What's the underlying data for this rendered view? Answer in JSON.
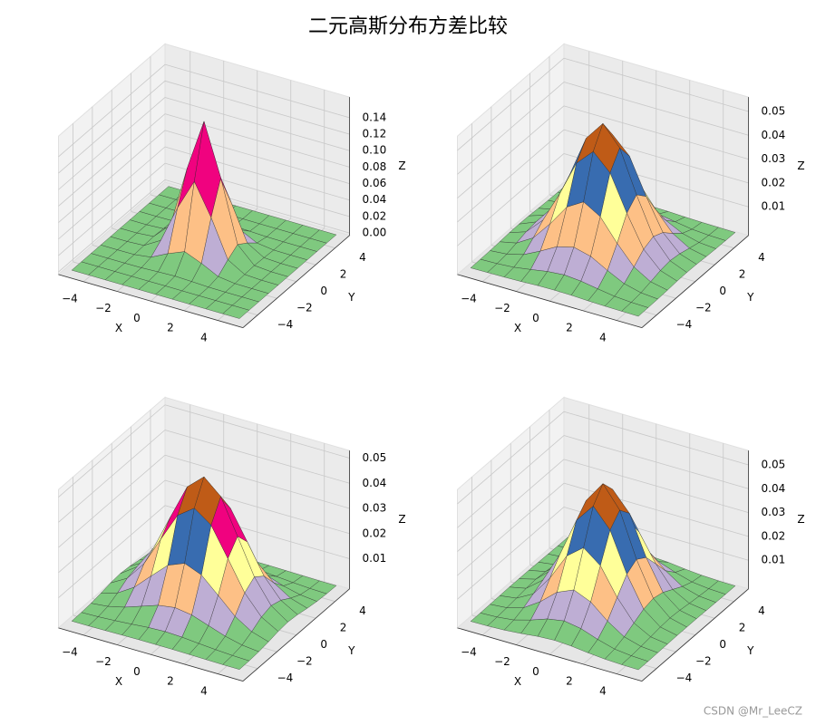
{
  "title": "二元高斯分布方差比较",
  "watermark": "CSDN @Mr_LeeCZ",
  "chart_data": [
    {
      "type": "surface",
      "xlabel": "X",
      "ylabel": "Y",
      "zlabel": "Z",
      "x": [
        -5,
        -4,
        -3,
        -2,
        -1,
        0,
        1,
        2,
        3,
        4,
        5
      ],
      "y": [
        -5,
        -4,
        -3,
        -2,
        -1,
        0,
        1,
        2,
        3,
        4,
        5
      ],
      "xlim": [
        -5.5,
        5.5
      ],
      "ylim": [
        -5.5,
        5.5
      ],
      "zlim": [
        -0.003,
        0.165
      ],
      "xticks": [
        {
          "value": -4,
          "label": "−4"
        },
        {
          "value": -2,
          "label": "−2"
        },
        0,
        2,
        4
      ],
      "yticks": [
        {
          "value": -4,
          "label": "−4"
        },
        {
          "value": -2,
          "label": "−2"
        },
        0,
        2,
        4
      ],
      "zticks": [
        {
          "value": 0,
          "label": "0.00"
        },
        0.02,
        0.04,
        0.06,
        0.08,
        {
          "value": 0.1,
          "label": "0.10"
        },
        0.12,
        0.14
      ],
      "grid": true,
      "colormap": [
        "#7fc97f",
        "#beaed4",
        "#fdc086",
        "#ffff99",
        "#386cb0",
        "#f0027f",
        "#bf5b17",
        "#666666"
      ],
      "z": [
        [
          0,
          0,
          0,
          0,
          0,
          0,
          0,
          0,
          0,
          0,
          0
        ],
        [
          0,
          0,
          0,
          0,
          0,
          0.0001,
          0,
          0,
          0,
          0,
          0
        ],
        [
          0,
          0,
          0,
          0.0002,
          0.0011,
          0.0018,
          0.0011,
          0.0002,
          0,
          0,
          0
        ],
        [
          0,
          0,
          0.0002,
          0.0029,
          0.0131,
          0.0215,
          0.0131,
          0.0029,
          0.0002,
          0,
          0
        ],
        [
          0,
          0,
          0.0011,
          0.0131,
          0.0586,
          0.0966,
          0.0586,
          0.0131,
          0.0011,
          0,
          0
        ],
        [
          0,
          0.0001,
          0.0018,
          0.0215,
          0.0966,
          0.1592,
          0.0966,
          0.0215,
          0.0018,
          0.0001,
          0
        ],
        [
          0,
          0,
          0.0011,
          0.0131,
          0.0586,
          0.0966,
          0.0586,
          0.0131,
          0.0011,
          0,
          0
        ],
        [
          0,
          0,
          0.0002,
          0.0029,
          0.0131,
          0.0215,
          0.0131,
          0.0029,
          0.0002,
          0,
          0
        ],
        [
          0,
          0,
          0,
          0.0002,
          0.0011,
          0.0018,
          0.0011,
          0.0002,
          0,
          0,
          0
        ],
        [
          0,
          0,
          0,
          0,
          0,
          0.0001,
          0,
          0,
          0,
          0,
          0
        ],
        [
          0,
          0,
          0,
          0,
          0,
          0,
          0,
          0,
          0,
          0,
          0
        ]
      ]
    },
    {
      "type": "surface",
      "xlabel": "X",
      "ylabel": "Y",
      "zlabel": "Z",
      "x": [
        -5,
        -4,
        -3,
        -2,
        -1,
        0,
        1,
        2,
        3,
        4,
        5
      ],
      "y": [
        -5,
        -4,
        -3,
        -2,
        -1,
        0,
        1,
        2,
        3,
        4,
        5
      ],
      "xlim": [
        -5.5,
        5.5
      ],
      "ylim": [
        -5.5,
        5.5
      ],
      "zlim": [
        -0.002,
        0.056
      ],
      "xticks": [
        {
          "value": -4,
          "label": "−4"
        },
        {
          "value": -2,
          "label": "−2"
        },
        0,
        2,
        4
      ],
      "yticks": [
        {
          "value": -4,
          "label": "−4"
        },
        {
          "value": -2,
          "label": "−2"
        },
        0,
        2,
        4
      ],
      "zticks": [
        0.01,
        0.02,
        0.03,
        0.04,
        0.05
      ],
      "grid": true,
      "colormap": [
        "#7fc97f",
        "#beaed4",
        "#fdc086",
        "#ffff99",
        "#386cb0",
        "#f0027f",
        "#bf5b17",
        "#666666"
      ],
      "z": [
        [
          0,
          0.0001,
          0.0002,
          0.0004,
          0.0007,
          0.0008,
          0.0007,
          0.0004,
          0.0002,
          0.0001,
          0
        ],
        [
          0.0001,
          0.0003,
          0.0008,
          0.0019,
          0.0031,
          0.0037,
          0.0031,
          0.0019,
          0.0008,
          0.0003,
          0.0001
        ],
        [
          0.0002,
          0.0008,
          0.0026,
          0.0061,
          0.01,
          0.0118,
          0.01,
          0.0061,
          0.0026,
          0.0008,
          0.0002
        ],
        [
          0.0004,
          0.0019,
          0.0061,
          0.014,
          0.0231,
          0.0273,
          0.0231,
          0.014,
          0.0061,
          0.0019,
          0.0004
        ],
        [
          0.0007,
          0.0031,
          0.01,
          0.0231,
          0.038,
          0.0449,
          0.038,
          0.0231,
          0.01,
          0.0031,
          0.0007
        ],
        [
          0.0008,
          0.0037,
          0.0118,
          0.0273,
          0.0449,
          0.0531,
          0.0449,
          0.0273,
          0.0118,
          0.0037,
          0.0008
        ],
        [
          0.0007,
          0.0031,
          0.01,
          0.0231,
          0.038,
          0.0449,
          0.038,
          0.0231,
          0.01,
          0.0031,
          0.0007
        ],
        [
          0.0004,
          0.0019,
          0.0061,
          0.014,
          0.0231,
          0.0273,
          0.0231,
          0.014,
          0.0061,
          0.0019,
          0.0004
        ],
        [
          0.0002,
          0.0008,
          0.0026,
          0.0061,
          0.01,
          0.0118,
          0.01,
          0.0061,
          0.0026,
          0.0008,
          0.0002
        ],
        [
          0.0001,
          0.0003,
          0.0008,
          0.0019,
          0.0031,
          0.0037,
          0.0031,
          0.0019,
          0.0008,
          0.0003,
          0.0001
        ],
        [
          0,
          0.0001,
          0.0002,
          0.0004,
          0.0007,
          0.0008,
          0.0007,
          0.0004,
          0.0002,
          0.0001,
          0
        ]
      ]
    },
    {
      "type": "surface",
      "xlabel": "X",
      "ylabel": "Y",
      "zlabel": "Z",
      "x": [
        -5,
        -4,
        -3,
        -2,
        -1,
        0,
        1,
        2,
        3,
        4,
        5
      ],
      "y": [
        -5,
        -4,
        -3,
        -2,
        -1,
        0,
        1,
        2,
        3,
        4,
        5
      ],
      "xlim": [
        -5.5,
        5.5
      ],
      "ylim": [
        -5.5,
        5.5
      ],
      "zlim": [
        -0.002,
        0.053
      ],
      "xticks": [
        {
          "value": -4,
          "label": "−4"
        },
        {
          "value": -2,
          "label": "−2"
        },
        0,
        2,
        4
      ],
      "yticks": [
        {
          "value": -4,
          "label": "−4"
        },
        {
          "value": -2,
          "label": "−2"
        },
        0,
        2,
        4
      ],
      "zticks": [
        0.01,
        0.02,
        0.03,
        0.04,
        0.05
      ],
      "grid": true,
      "colormap": [
        "#7fc97f",
        "#beaed4",
        "#fdc086",
        "#ffff99",
        "#386cb0",
        "#f0027f",
        "#bf5b17",
        "#666666"
      ],
      "z": [
        [
          0,
          0,
          0.0001,
          0.0002,
          0.0003,
          0.0003,
          0.0003,
          0.0002,
          0.0001,
          0,
          0
        ],
        [
          0.0001,
          0.0003,
          0.0007,
          0.0012,
          0.0018,
          0.0021,
          0.0018,
          0.0012,
          0.0007,
          0.0003,
          0.0001
        ],
        [
          0.0004,
          0.0011,
          0.0027,
          0.005,
          0.0073,
          0.0083,
          0.0073,
          0.005,
          0.0027,
          0.0011,
          0.0004
        ],
        [
          0.001,
          0.0031,
          0.0073,
          0.0137,
          0.0199,
          0.0226,
          0.0199,
          0.0137,
          0.0073,
          0.0031,
          0.001
        ],
        [
          0.0018,
          0.0056,
          0.0133,
          0.025,
          0.0364,
          0.0412,
          0.0364,
          0.025,
          0.0133,
          0.0056,
          0.0018
        ],
        [
          0.0022,
          0.0068,
          0.0163,
          0.0305,
          0.0444,
          0.0503,
          0.0444,
          0.0305,
          0.0163,
          0.0068,
          0.0022
        ],
        [
          0.0018,
          0.0056,
          0.0133,
          0.025,
          0.0364,
          0.0412,
          0.0364,
          0.025,
          0.0133,
          0.0056,
          0.0018
        ],
        [
          0.001,
          0.0031,
          0.0073,
          0.0137,
          0.0199,
          0.0226,
          0.0199,
          0.0137,
          0.0073,
          0.0031,
          0.001
        ],
        [
          0.0004,
          0.0011,
          0.0027,
          0.005,
          0.0073,
          0.0083,
          0.0073,
          0.005,
          0.0027,
          0.0011,
          0.0004
        ],
        [
          0.0001,
          0.0003,
          0.0007,
          0.0012,
          0.0018,
          0.0021,
          0.0018,
          0.0012,
          0.0007,
          0.0003,
          0.0001
        ],
        [
          0,
          0,
          0.0001,
          0.0002,
          0.0003,
          0.0003,
          0.0003,
          0.0002,
          0.0001,
          0,
          0
        ]
      ]
    },
    {
      "type": "surface",
      "xlabel": "X",
      "ylabel": "Y",
      "zlabel": "Z",
      "x": [
        -5,
        -4,
        -3,
        -2,
        -1,
        0,
        1,
        2,
        3,
        4,
        5
      ],
      "y": [
        -5,
        -4,
        -3,
        -2,
        -1,
        0,
        1,
        2,
        3,
        4,
        5
      ],
      "xlim": [
        -5.5,
        5.5
      ],
      "ylim": [
        -5.5,
        5.5
      ],
      "zlim": [
        -0.002,
        0.056
      ],
      "xticks": [
        {
          "value": -4,
          "label": "−4"
        },
        {
          "value": -2,
          "label": "−2"
        },
        0,
        2,
        4
      ],
      "yticks": [
        {
          "value": -4,
          "label": "−4"
        },
        {
          "value": -2,
          "label": "−2"
        },
        0,
        2,
        4
      ],
      "zticks": [
        0.01,
        0.02,
        0.03,
        0.04,
        0.05
      ],
      "grid": true,
      "colormap": [
        "#7fc97f",
        "#beaed4",
        "#fdc086",
        "#ffff99",
        "#386cb0",
        "#f0027f",
        "#bf5b17",
        "#666666"
      ],
      "z": [
        [
          0,
          0.0001,
          0.0004,
          0.001,
          0.0018,
          0.0022,
          0.0018,
          0.001,
          0.0004,
          0.0001,
          0
        ],
        [
          0,
          0.0003,
          0.0011,
          0.0031,
          0.0056,
          0.0068,
          0.0056,
          0.0031,
          0.0011,
          0.0003,
          0
        ],
        [
          0.0001,
          0.0007,
          0.0027,
          0.0073,
          0.0133,
          0.0163,
          0.0133,
          0.0073,
          0.0027,
          0.0007,
          0.0001
        ],
        [
          0.0002,
          0.0012,
          0.005,
          0.0137,
          0.025,
          0.0305,
          0.025,
          0.0137,
          0.005,
          0.0012,
          0.0002
        ],
        [
          0.0003,
          0.0018,
          0.0073,
          0.0199,
          0.0364,
          0.0444,
          0.0364,
          0.0199,
          0.0073,
          0.0018,
          0.0003
        ],
        [
          0.0003,
          0.0021,
          0.0083,
          0.0226,
          0.0412,
          0.0503,
          0.0412,
          0.0226,
          0.0083,
          0.0021,
          0.0003
        ],
        [
          0.0003,
          0.0018,
          0.0073,
          0.0199,
          0.0364,
          0.0444,
          0.0364,
          0.0199,
          0.0073,
          0.0018,
          0.0003
        ],
        [
          0.0002,
          0.0012,
          0.005,
          0.0137,
          0.025,
          0.0305,
          0.025,
          0.0137,
          0.005,
          0.0012,
          0.0002
        ],
        [
          0.0001,
          0.0007,
          0.0027,
          0.0073,
          0.0133,
          0.0163,
          0.0133,
          0.0073,
          0.0027,
          0.0007,
          0.0001
        ],
        [
          0,
          0.0003,
          0.0011,
          0.0031,
          0.0056,
          0.0068,
          0.0056,
          0.0031,
          0.0011,
          0.0003,
          0
        ],
        [
          0,
          0.0001,
          0.0004,
          0.001,
          0.0018,
          0.0022,
          0.0018,
          0.001,
          0.0004,
          0.0001,
          0
        ]
      ]
    }
  ]
}
